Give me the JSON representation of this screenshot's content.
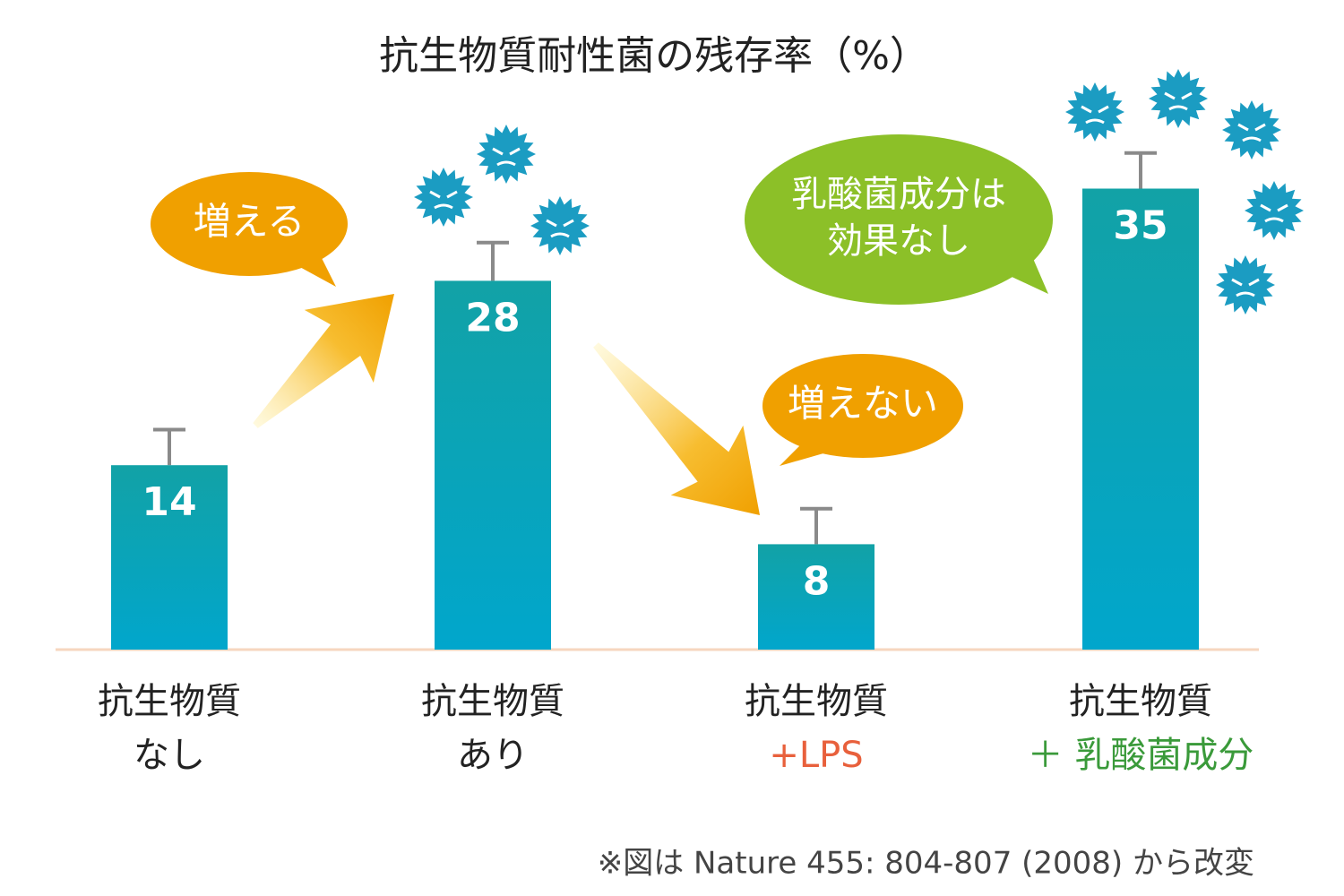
{
  "chart_data": {
    "type": "bar",
    "title": "抗生物質耐性菌の残存率（%）",
    "categories": [
      [
        "抗生物質",
        "なし"
      ],
      [
        "抗生物質",
        "あり"
      ],
      [
        "抗生物質",
        "+LPS"
      ],
      [
        "抗生物質",
        "＋ 乳酸菌成分"
      ]
    ],
    "category_sub_colors": [
      "#222222",
      "#222222",
      "#e8603c",
      "#3a9a3a"
    ],
    "values": [
      14,
      28,
      8,
      35
    ],
    "errors": [
      2.7,
      2.9,
      2.7,
      2.7
    ],
    "color": "#06a3c2",
    "ylim": [
      0,
      40
    ],
    "annotations": [
      {
        "lines": [
          "増える"
        ],
        "color": "#f0a000"
      },
      {
        "lines": [
          "増えない"
        ],
        "color": "#f0a000"
      },
      {
        "lines": [
          "乳酸菌成分は",
          "効果なし"
        ],
        "color": "#8cc028"
      }
    ],
    "footnote": "※図は Nature 455: 804-807 (2008) から改変"
  }
}
